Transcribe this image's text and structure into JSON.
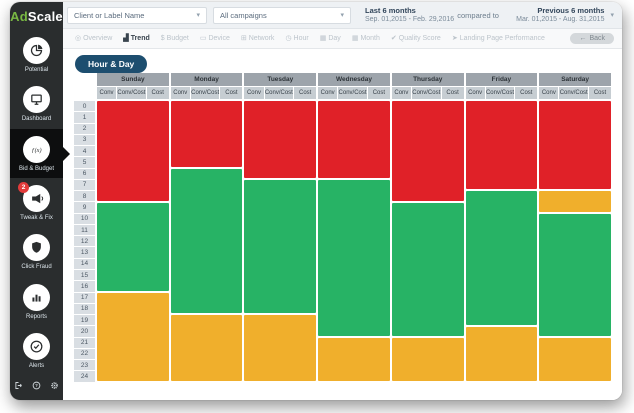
{
  "app": {
    "logo_ad": "Ad",
    "logo_scale": "Scale"
  },
  "icons": {
    "chevron_down": "▾",
    "back_arrow": "←"
  },
  "sidebar": {
    "items": [
      {
        "label": "Potential",
        "icon": "pie-chart",
        "active": false,
        "badge": null
      },
      {
        "label": "Dashboard",
        "icon": "monitor",
        "active": false,
        "badge": null
      },
      {
        "label": "Bid & Budget",
        "icon": "function",
        "active": true,
        "badge": null
      },
      {
        "label": "Tweak & Fix",
        "icon": "megaphone",
        "active": false,
        "badge": "2"
      },
      {
        "label": "Click Fraud",
        "icon": "shield",
        "active": false,
        "badge": null
      },
      {
        "label": "Reports",
        "icon": "bar-chart",
        "active": false,
        "badge": null
      },
      {
        "label": "Alerts",
        "icon": "check-circle",
        "active": false,
        "badge": null
      }
    ],
    "footer_icons": [
      {
        "name": "logout"
      },
      {
        "name": "help"
      },
      {
        "name": "settings"
      }
    ]
  },
  "header": {
    "client_dropdown": "Client or Label Name",
    "campaign_dropdown": "All campaigns",
    "period": {
      "label": "Last 6 months",
      "range": "Sep. 01,2015 - Feb. 29,2016"
    },
    "compare_text": "compared to",
    "compare_period": {
      "label": "Previous 6 months",
      "range": "Mar. 01,2015 - Aug. 31,2015"
    }
  },
  "nav": {
    "items": [
      {
        "label": "Overview",
        "icon": "overview",
        "active": false
      },
      {
        "label": "Trend",
        "icon": "trend",
        "active": true
      },
      {
        "label": "Budget",
        "icon": "dollar",
        "active": false
      },
      {
        "label": "Device",
        "icon": "device",
        "active": false
      },
      {
        "label": "Network",
        "icon": "network",
        "active": false
      },
      {
        "label": "Hour",
        "icon": "clock",
        "active": false
      },
      {
        "label": "Day",
        "icon": "calendar-day",
        "active": false
      },
      {
        "label": "Month",
        "icon": "calendar-month",
        "active": false
      },
      {
        "label": "Quality Score",
        "icon": "quality",
        "active": false
      },
      {
        "label": "Landing Page Performance",
        "icon": "landing",
        "active": false
      }
    ],
    "back_label": "Back"
  },
  "chart_data": {
    "type": "heatmap",
    "title": "Hour & Day",
    "days": [
      "Sunday",
      "Monday",
      "Tuesday",
      "Wednesday",
      "Thursday",
      "Friday",
      "Saturday"
    ],
    "sub_columns": [
      "Conv",
      "Conv/Cost",
      "Cost"
    ],
    "hours": [
      0,
      1,
      2,
      3,
      4,
      5,
      6,
      7,
      8,
      9,
      10,
      11,
      12,
      13,
      14,
      15,
      16,
      17,
      18,
      19,
      20,
      21,
      22,
      23,
      24
    ],
    "colors": {
      "red": "#e02128",
      "green": "#27b365",
      "yellow": "#f0af2c"
    },
    "day_segments": [
      {
        "day": "Sunday",
        "segments": [
          {
            "color": "red",
            "from": 0,
            "to": 8
          },
          {
            "color": "green",
            "from": 9,
            "to": 16
          },
          {
            "color": "yellow",
            "from": 17,
            "to": 24
          }
        ]
      },
      {
        "day": "Monday",
        "segments": [
          {
            "color": "red",
            "from": 0,
            "to": 5
          },
          {
            "color": "green",
            "from": 6,
            "to": 18
          },
          {
            "color": "yellow",
            "from": 19,
            "to": 24
          }
        ]
      },
      {
        "day": "Tuesday",
        "segments": [
          {
            "color": "red",
            "from": 0,
            "to": 6
          },
          {
            "color": "green",
            "from": 7,
            "to": 18
          },
          {
            "color": "yellow",
            "from": 19,
            "to": 24
          }
        ]
      },
      {
        "day": "Wednesday",
        "segments": [
          {
            "color": "red",
            "from": 0,
            "to": 6
          },
          {
            "color": "green",
            "from": 7,
            "to": 20
          },
          {
            "color": "yellow",
            "from": 21,
            "to": 24
          }
        ]
      },
      {
        "day": "Thursday",
        "segments": [
          {
            "color": "red",
            "from": 0,
            "to": 8
          },
          {
            "color": "green",
            "from": 9,
            "to": 20
          },
          {
            "color": "yellow",
            "from": 21,
            "to": 24
          }
        ]
      },
      {
        "day": "Friday",
        "segments": [
          {
            "color": "red",
            "from": 0,
            "to": 7
          },
          {
            "color": "green",
            "from": 8,
            "to": 19
          },
          {
            "color": "yellow",
            "from": 20,
            "to": 24
          }
        ]
      },
      {
        "day": "Saturday",
        "segments": [
          {
            "color": "red",
            "from": 0,
            "to": 7
          },
          {
            "color": "yellow",
            "from": 8,
            "to": 9
          },
          {
            "color": "green",
            "from": 10,
            "to": 20
          },
          {
            "color": "yellow",
            "from": 21,
            "to": 24
          }
        ]
      }
    ]
  }
}
